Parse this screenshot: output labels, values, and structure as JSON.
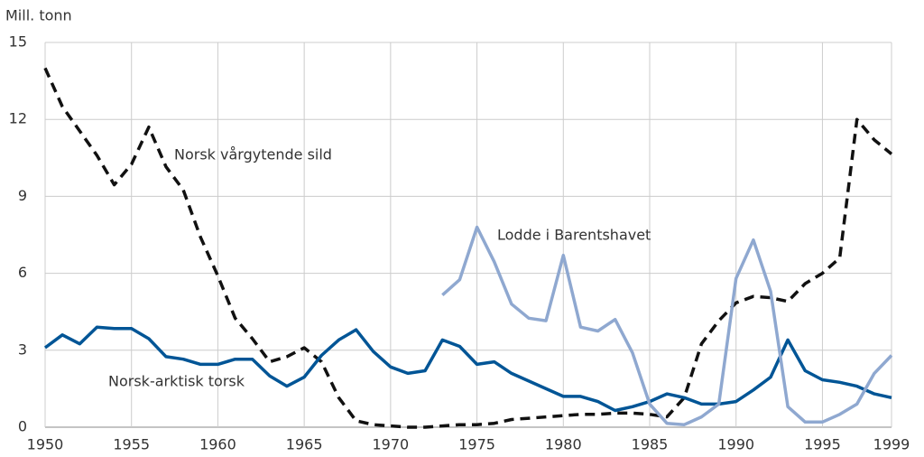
{
  "chart_data": {
    "type": "line",
    "y_label": "Mill. tonn",
    "x": [
      1950,
      1951,
      1952,
      1953,
      1954,
      1955,
      1956,
      1957,
      1958,
      1959,
      1960,
      1961,
      1962,
      1963,
      1964,
      1965,
      1966,
      1967,
      1968,
      1969,
      1970,
      1971,
      1972,
      1973,
      1974,
      1975,
      1976,
      1977,
      1978,
      1979,
      1980,
      1981,
      1982,
      1983,
      1984,
      1985,
      1986,
      1987,
      1988,
      1989,
      1990,
      1991,
      1992,
      1993,
      1994,
      1995,
      1996,
      1997,
      1998,
      1999
    ],
    "series": [
      {
        "name": "Norsk vårgytende sild",
        "color": "#111111",
        "dashed": true,
        "values": [
          14.0,
          12.5,
          11.55,
          10.6,
          9.45,
          10.25,
          11.7,
          10.15,
          9.25,
          7.4,
          5.9,
          4.25,
          3.45,
          2.55,
          2.75,
          3.1,
          2.55,
          1.15,
          0.25,
          0.1,
          0.05,
          0.0,
          0.0,
          0.05,
          0.1,
          0.1,
          0.15,
          0.3,
          0.35,
          0.4,
          0.45,
          0.5,
          0.5,
          0.55,
          0.55,
          0.5,
          0.4,
          1.15,
          3.25,
          4.15,
          4.85,
          5.1,
          5.05,
          4.9,
          5.6,
          6.0,
          6.6,
          12.0,
          11.2,
          10.65
        ]
      },
      {
        "name": "Norsk-arktisk torsk",
        "color": "#005596",
        "dashed": false,
        "values": [
          3.1,
          3.6,
          3.25,
          3.9,
          3.85,
          3.85,
          3.45,
          2.75,
          2.65,
          2.45,
          2.45,
          2.65,
          2.65,
          2.0,
          1.6,
          1.95,
          2.8,
          3.4,
          3.8,
          2.95,
          2.35,
          2.1,
          2.2,
          3.4,
          3.15,
          2.45,
          2.55,
          2.1,
          1.8,
          1.5,
          1.2,
          1.2,
          1.0,
          0.65,
          0.8,
          1.0,
          1.3,
          1.15,
          0.9,
          0.9,
          1.0,
          1.45,
          1.95,
          3.4,
          2.2,
          1.85,
          1.75,
          1.6,
          1.3,
          1.15
        ]
      },
      {
        "name": "Lodde i Barentshavet",
        "color": "#8fa8d0",
        "dashed": false,
        "values": [
          null,
          null,
          null,
          null,
          null,
          null,
          null,
          null,
          null,
          null,
          null,
          null,
          null,
          null,
          null,
          null,
          null,
          null,
          null,
          null,
          null,
          null,
          null,
          5.15,
          5.75,
          7.8,
          6.45,
          4.8,
          4.25,
          4.15,
          6.7,
          3.9,
          3.75,
          4.2,
          2.9,
          0.9,
          0.15,
          0.1,
          0.4,
          0.9,
          5.8,
          7.3,
          5.3,
          0.8,
          0.2,
          0.2,
          0.5,
          0.9,
          2.1,
          2.8
        ]
      }
    ],
    "xlim": [
      1950,
      1999
    ],
    "xticks": [
      1950,
      1955,
      1960,
      1965,
      1970,
      1975,
      1980,
      1985,
      1990,
      1995,
      1999
    ],
    "ylim": [
      0,
      15
    ],
    "yticks": [
      0,
      3,
      6,
      9,
      12,
      15
    ],
    "grid": true
  }
}
